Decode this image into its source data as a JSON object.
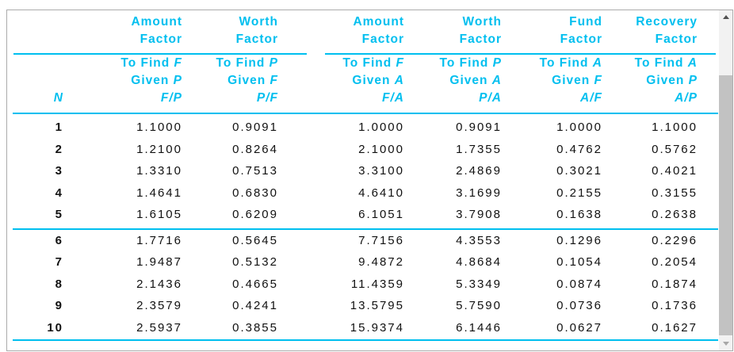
{
  "colors": {
    "accent": "#00bfef",
    "body_text": "#111111",
    "panel_border": "#ababab"
  },
  "scrollbar": {
    "up_icon": "triangle-up",
    "down_icon": "triangle-down"
  },
  "table": {
    "symbol_separator": "/",
    "columns": [
      {
        "id": "n",
        "group_line1": "",
        "group_line2": "",
        "find_prefix": "",
        "find_var": "",
        "given_prefix": "",
        "given_var": "",
        "sym_num": "",
        "sym_den": "",
        "header": "N"
      },
      {
        "id": "fp",
        "group_line1": "Amount",
        "group_line2": "Factor",
        "find_prefix": "To Find",
        "find_var": "F",
        "given_prefix": "Given",
        "given_var": "P",
        "sym_num": "F",
        "sym_den": "P"
      },
      {
        "id": "pf",
        "group_line1": "Worth",
        "group_line2": "Factor",
        "find_prefix": "To Find",
        "find_var": "P",
        "given_prefix": "Given",
        "given_var": "F",
        "sym_num": "P",
        "sym_den": "F"
      },
      {
        "id": "fa",
        "group_line1": "Amount",
        "group_line2": "Factor",
        "find_prefix": "To Find",
        "find_var": "F",
        "given_prefix": "Given",
        "given_var": "A",
        "sym_num": "F",
        "sym_den": "A"
      },
      {
        "id": "pa",
        "group_line1": "Worth",
        "group_line2": "Factor",
        "find_prefix": "To Find",
        "find_var": "P",
        "given_prefix": "Given",
        "given_var": "A",
        "sym_num": "P",
        "sym_den": "A"
      },
      {
        "id": "af",
        "group_line1": "Fund",
        "group_line2": "Factor",
        "find_prefix": "To Find",
        "find_var": "A",
        "given_prefix": "Given",
        "given_var": "F",
        "sym_num": "A",
        "sym_den": "F"
      },
      {
        "id": "ap",
        "group_line1": "Recovery",
        "group_line2": "Factor",
        "find_prefix": "To Find",
        "find_var": "A",
        "given_prefix": "Given",
        "given_var": "P",
        "sym_num": "A",
        "sym_den": "P"
      }
    ],
    "section_break_after_row": 5,
    "rows": [
      {
        "n": "1",
        "values": [
          "1.1000",
          "0.9091",
          "1.0000",
          "0.9091",
          "1.0000",
          "1.1000"
        ]
      },
      {
        "n": "2",
        "values": [
          "1.2100",
          "0.8264",
          "2.1000",
          "1.7355",
          "0.4762",
          "0.5762"
        ]
      },
      {
        "n": "3",
        "values": [
          "1.3310",
          "0.7513",
          "3.3100",
          "2.4869",
          "0.3021",
          "0.4021"
        ]
      },
      {
        "n": "4",
        "values": [
          "1.4641",
          "0.6830",
          "4.6410",
          "3.1699",
          "0.2155",
          "0.3155"
        ]
      },
      {
        "n": "5",
        "values": [
          "1.6105",
          "0.6209",
          "6.1051",
          "3.7908",
          "0.1638",
          "0.2638"
        ]
      },
      {
        "n": "6",
        "values": [
          "1.7716",
          "0.5645",
          "7.7156",
          "4.3553",
          "0.1296",
          "0.2296"
        ]
      },
      {
        "n": "7",
        "values": [
          "1.9487",
          "0.5132",
          "9.4872",
          "4.8684",
          "0.1054",
          "0.2054"
        ]
      },
      {
        "n": "8",
        "values": [
          "2.1436",
          "0.4665",
          "11.4359",
          "5.3349",
          "0.0874",
          "0.1874"
        ]
      },
      {
        "n": "9",
        "values": [
          "2.3579",
          "0.4241",
          "13.5795",
          "5.7590",
          "0.0736",
          "0.1736"
        ]
      },
      {
        "n": "10",
        "values": [
          "2.5937",
          "0.3855",
          "15.9374",
          "6.1446",
          "0.0627",
          "0.1627"
        ]
      }
    ]
  }
}
